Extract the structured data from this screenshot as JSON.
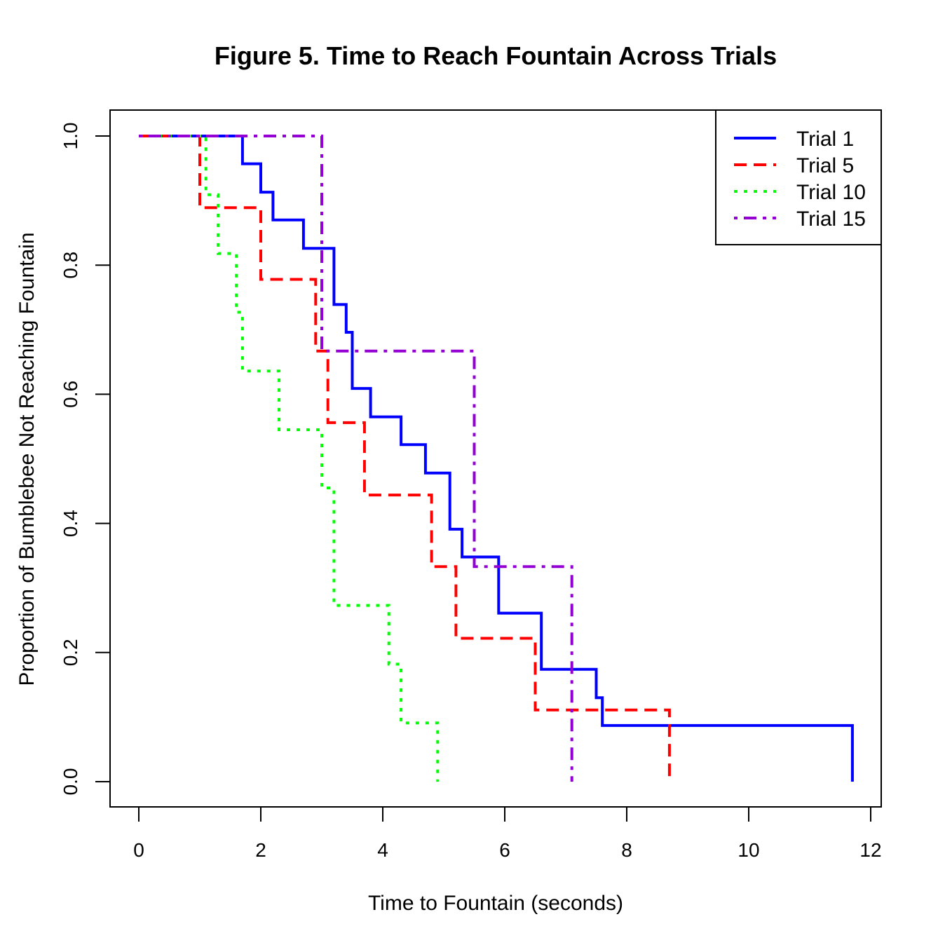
{
  "chart_data": {
    "type": "line",
    "step": true,
    "title": "Figure 5. Time to Reach Fountain Across Trials",
    "xlabel": "Time to Fountain (seconds)",
    "ylabel": "Proportion of Bumblebee Not Reaching Fountain",
    "xlim": [
      0,
      12
    ],
    "ylim": [
      0,
      1.0
    ],
    "xticks": [
      0,
      2,
      4,
      6,
      8,
      10,
      12
    ],
    "xtick_labels": [
      "0",
      "2",
      "4",
      "6",
      "8",
      "10",
      "12"
    ],
    "yticks": [
      0,
      0.2,
      0.4,
      0.6,
      0.8,
      1.0
    ],
    "ytick_labels": [
      "0.0",
      "0.2",
      "0.4",
      "0.6",
      "0.8",
      "1.0"
    ],
    "grid": false,
    "legend_position": "top-right",
    "series": [
      {
        "name": "Trial 1",
        "color": "#0000ff",
        "dash": "solid",
        "x": [
          0,
          1.7,
          2.0,
          2.2,
          2.7,
          3.2,
          3.4,
          3.5,
          3.8,
          4.3,
          4.7,
          5.1,
          5.3,
          5.9,
          6.6,
          7.5,
          7.6,
          11.7
        ],
        "y": [
          1.0,
          0.957,
          0.913,
          0.87,
          0.826,
          0.739,
          0.696,
          0.609,
          0.565,
          0.522,
          0.478,
          0.391,
          0.348,
          0.261,
          0.174,
          0.13,
          0.087,
          0.0
        ]
      },
      {
        "name": "Trial 5",
        "color": "#ff0000",
        "dash": "dashed",
        "x": [
          0,
          1.0,
          2.0,
          2.9,
          3.1,
          3.7,
          4.8,
          5.2,
          6.5,
          8.7
        ],
        "y": [
          1.0,
          0.889,
          0.778,
          0.667,
          0.556,
          0.444,
          0.333,
          0.222,
          0.111,
          0.0
        ]
      },
      {
        "name": "Trial 10",
        "color": "#00ff00",
        "dash": "dotted",
        "x": [
          0,
          1.1,
          1.3,
          1.6,
          1.7,
          2.3,
          3.0,
          3.2,
          4.1,
          4.3,
          4.9
        ],
        "y": [
          1.0,
          0.909,
          0.818,
          0.727,
          0.636,
          0.545,
          0.455,
          0.273,
          0.182,
          0.091,
          0.0
        ]
      },
      {
        "name": "Trial 15",
        "color": "#9400d3",
        "dash": "dotdash",
        "x": [
          0,
          3.0,
          5.5,
          7.1
        ],
        "y": [
          1.0,
          0.667,
          0.333,
          0.0
        ]
      }
    ]
  }
}
